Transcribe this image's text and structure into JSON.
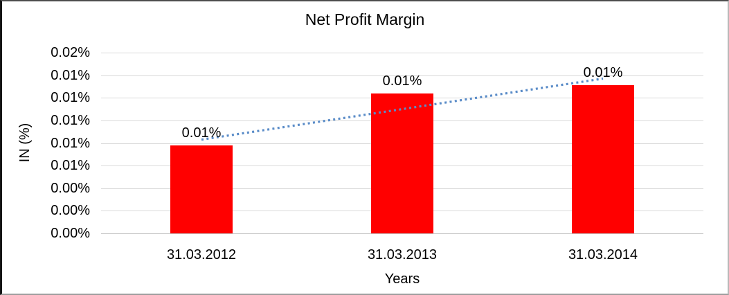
{
  "chart_data": {
    "type": "bar",
    "title": "Net Profit Margin",
    "xlabel": "Years",
    "ylabel": "IN (%)",
    "categories": [
      "31.03.2012",
      "31.03.2013",
      "31.03.2014"
    ],
    "values": [
      0.0078,
      0.0124,
      0.0131
    ],
    "data_labels": [
      "0.01%",
      "0.01%",
      "0.01%"
    ],
    "y_ticks_top_to_bottom": [
      "0.02%",
      "0.01%",
      "0.01%",
      "0.01%",
      "0.01%",
      "0.01%",
      "0.00%",
      "0.00%",
      "0.00%"
    ],
    "ylim": [
      0,
      0.016
    ],
    "grid": true,
    "legend": "none",
    "bar_color": "#ff0000",
    "gridline_color": "#d9d9d9",
    "trendline": {
      "type": "linear",
      "style": "dotted",
      "color": "#5a8cc8",
      "start_value": 0.0083,
      "end_value": 0.0137
    }
  }
}
